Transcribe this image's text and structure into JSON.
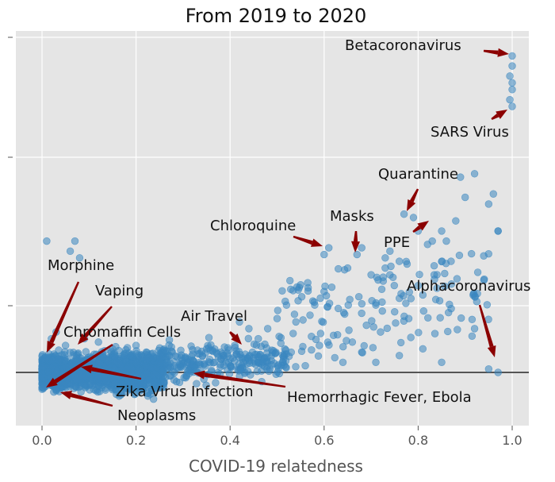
{
  "chart_data": {
    "type": "scatter",
    "title": "From 2019 to 2020",
    "xlabel": "COVID-19 relatedness",
    "ylabel": "",
    "xlim": [
      -0.05,
      1.05
    ],
    "x_ticks": [
      "0.0",
      "0.2",
      "0.4",
      "0.6",
      "0.8",
      "1.0"
    ],
    "grid": true,
    "background": "#e5e5e5",
    "point_color": "#3a87c0",
    "arrow_color": "#8b0000",
    "highlighted_points": [
      {
        "label": "Betacoronavirus",
        "x": 1.0,
        "y": 0.94
      },
      {
        "label": "SARS Virus",
        "x": 0.99,
        "y": 0.79
      },
      {
        "label": "Quarantine",
        "x": 0.78,
        "y": 0.46
      },
      {
        "label": "Masks",
        "x": 0.67,
        "y": 0.34
      },
      {
        "label": "PPE",
        "x": 0.81,
        "y": 0.45
      },
      {
        "label": "Chloroquine",
        "x": 0.61,
        "y": 0.37
      },
      {
        "label": "Alphacoronavirus",
        "x": 0.97,
        "y": 0.0
      },
      {
        "label": "Air Travel",
        "x": 0.43,
        "y": 0.09
      },
      {
        "label": "Morphine",
        "x": 0.01,
        "y": 0.06
      },
      {
        "label": "Vaping",
        "x": 0.08,
        "y": 0.08
      },
      {
        "label": "Chromaffin Cells",
        "x": 0.01,
        "y": -0.05
      },
      {
        "label": "Zika Virus Infection",
        "x": 0.09,
        "y": -0.01
      },
      {
        "label": "Hemorrhagic Fever, Ebola",
        "x": 0.32,
        "y": -0.03
      },
      {
        "label": "Neoplasms",
        "x": 0.04,
        "y": -0.08
      }
    ]
  }
}
